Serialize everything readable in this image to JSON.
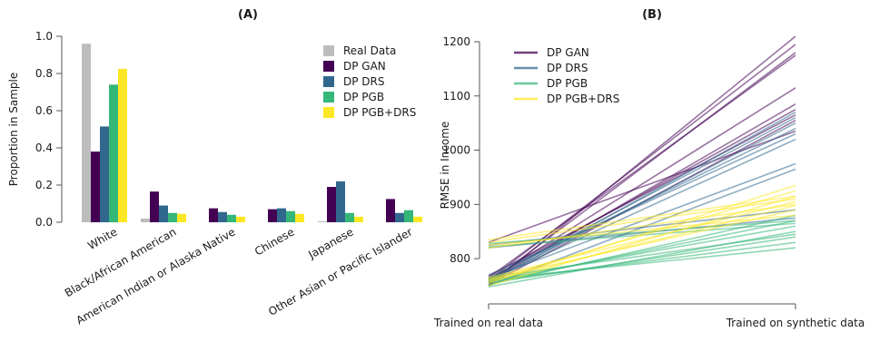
{
  "colors": {
    "Real Data": "#bdbdbd",
    "DP GAN": "#440154",
    "DP DRS": "#31688e",
    "DP PGB": "#35b779",
    "DP PGB+DRS": "#fde725"
  },
  "chart_data": [
    {
      "type": "bar",
      "title": "(A)",
      "xlabel": "",
      "ylabel": "Proportion in Sample",
      "ylim": [
        0,
        1.0
      ],
      "yticks": [
        "0.0",
        "0.2",
        "0.4",
        "0.6",
        "0.8",
        "1.0"
      ],
      "grid": false,
      "legend_position": "top-right",
      "categories": [
        "White",
        "Black/African American",
        "American Indian or Alaska Native",
        "Chinese",
        "Japanese",
        "Other Asian or Pacific Islander"
      ],
      "series": [
        {
          "name": "Real Data",
          "values": [
            0.96,
            0.02,
            0.0,
            0.0,
            0.005,
            0.0
          ]
        },
        {
          "name": "DP GAN",
          "values": [
            0.38,
            0.165,
            0.075,
            0.07,
            0.19,
            0.125
          ]
        },
        {
          "name": "DP DRS",
          "values": [
            0.515,
            0.09,
            0.055,
            0.075,
            0.22,
            0.05
          ]
        },
        {
          "name": "DP PGB",
          "values": [
            0.74,
            0.05,
            0.04,
            0.06,
            0.05,
            0.065
          ]
        },
        {
          "name": "DP PGB+DRS",
          "values": [
            0.825,
            0.045,
            0.03,
            0.045,
            0.03,
            0.03
          ]
        }
      ]
    },
    {
      "type": "line",
      "title": "(B)",
      "xlabel": "",
      "ylabel": "RMSE in Income",
      "x": [
        "Trained on real data",
        "Trained on synthetic data"
      ],
      "ylim": [
        750,
        1210
      ],
      "yticks": [
        "800",
        "900",
        "1000",
        "1100",
        "1200"
      ],
      "grid": false,
      "legend_position": "top-left",
      "series": [
        {
          "name": "DP GAN",
          "lines": [
            [
              750,
              1210
            ],
            [
              760,
              1195
            ],
            [
              755,
              1180
            ],
            [
              765,
              1175
            ],
            [
              760,
              1115
            ],
            [
              757,
              1085
            ],
            [
              762,
              1075
            ],
            [
              768,
              1065
            ],
            [
              752,
              1055
            ],
            [
              830,
              1035
            ]
          ]
        },
        {
          "name": "DP DRS",
          "lines": [
            [
              755,
              1070
            ],
            [
              762,
              1060
            ],
            [
              758,
              1050
            ],
            [
              765,
              1040
            ],
            [
              770,
              1030
            ],
            [
              760,
              1020
            ],
            [
              764,
              975
            ],
            [
              750,
              965
            ],
            [
              825,
              890
            ],
            [
              820,
              875
            ]
          ]
        },
        {
          "name": "DP PGB",
          "lines": [
            [
              752,
              880
            ],
            [
              756,
              870
            ],
            [
              760,
              860
            ],
            [
              748,
              850
            ],
            [
              765,
              845
            ],
            [
              755,
              840
            ],
            [
              758,
              830
            ],
            [
              762,
              820
            ],
            [
              828,
              870
            ],
            [
              822,
              865
            ]
          ]
        },
        {
          "name": "DP PGB+DRS",
          "lines": [
            [
              755,
              935
            ],
            [
              760,
              925
            ],
            [
              750,
              915
            ],
            [
              765,
              905
            ],
            [
              758,
              898
            ],
            [
              762,
              890
            ],
            [
              825,
              880
            ],
            [
              830,
              910
            ],
            [
              820,
              900
            ],
            [
              835,
              915
            ]
          ]
        }
      ]
    }
  ]
}
